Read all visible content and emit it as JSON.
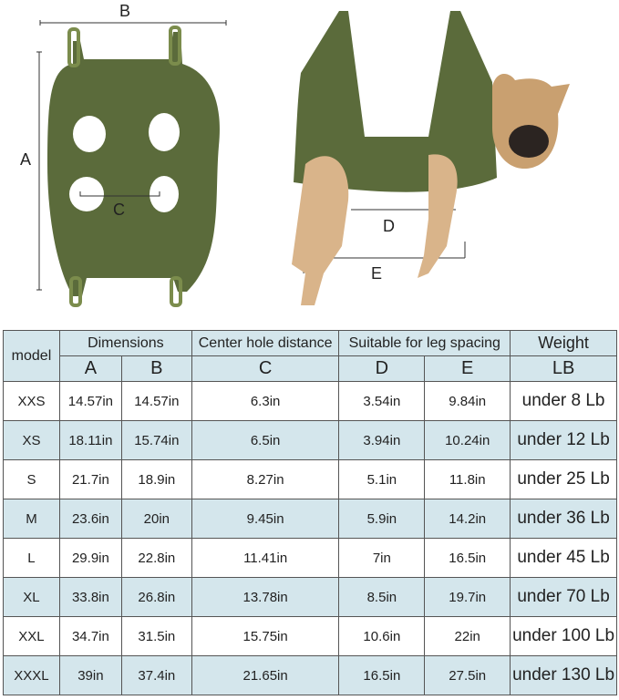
{
  "diagram": {
    "labels": {
      "a": "A",
      "b": "B",
      "c": "C",
      "d": "D",
      "e": "E"
    },
    "colors": {
      "fabric": "#5b6b3b",
      "strap": "#6f7f45",
      "dog": "#d9b48a"
    }
  },
  "table": {
    "header_groups": {
      "model": "model",
      "dimensions": "Dimensions",
      "center": "Center hole distance",
      "leg": "Suitable for leg spacing",
      "weight": "Weight"
    },
    "sub_headers": {
      "a": "A",
      "b": "B",
      "c": "C",
      "d": "D",
      "e": "E",
      "lb": "LB"
    },
    "rows": [
      {
        "model": "XXS",
        "a": "14.57in",
        "b": "14.57in",
        "c": "6.3in",
        "d": "3.54in",
        "e": "9.84in",
        "weight": "under 8 Lb"
      },
      {
        "model": "XS",
        "a": "18.11in",
        "b": "15.74in",
        "c": "6.5in",
        "d": "3.94in",
        "e": "10.24in",
        "weight": "under 12 Lb"
      },
      {
        "model": "S",
        "a": "21.7in",
        "b": "18.9in",
        "c": "8.27in",
        "d": "5.1in",
        "e": "11.8in",
        "weight": "under 25 Lb"
      },
      {
        "model": "M",
        "a": "23.6in",
        "b": "20in",
        "c": "9.45in",
        "d": "5.9in",
        "e": "14.2in",
        "weight": "under 36 Lb"
      },
      {
        "model": "L",
        "a": "29.9in",
        "b": "22.8in",
        "c": "11.41in",
        "d": "7in",
        "e": "16.5in",
        "weight": "under 45 Lb"
      },
      {
        "model": "XL",
        "a": "33.8in",
        "b": "26.8in",
        "c": "13.78in",
        "d": "8.5in",
        "e": "19.7in",
        "weight": "under 70 Lb"
      },
      {
        "model": "XXL",
        "a": "34.7in",
        "b": "31.5in",
        "c": "15.75in",
        "d": "10.6in",
        "e": "22in",
        "weight": "under 100 Lb"
      },
      {
        "model": "XXXL",
        "a": "39in",
        "b": "37.4in",
        "c": "21.65in",
        "d": "16.5in",
        "e": "27.5in",
        "weight": "under 130 Lb"
      }
    ],
    "colors": {
      "header_bg": "#d4e6ec",
      "alt_row_bg": "#d4e6ec",
      "border": "#555555"
    }
  }
}
